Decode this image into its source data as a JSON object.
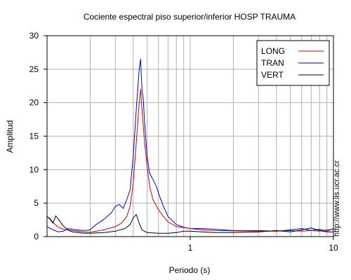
{
  "chart_data": {
    "type": "line",
    "title": "Cociente espectral piso superior/inferior  HOSP TRAUMA",
    "xlabel": "Periodo (s)",
    "ylabel": "Amplitud",
    "x_scale": "log",
    "xlim": [
      0.1,
      10
    ],
    "ylim": [
      0,
      30
    ],
    "x_ticks": [
      {
        "value": 1,
        "label": "1"
      },
      {
        "value": 10,
        "label": "10"
      }
    ],
    "y_ticks": [
      0,
      5,
      10,
      15,
      20,
      25,
      30
    ],
    "grid": true,
    "legend_position": "top-right",
    "series": [
      {
        "name": "LONG",
        "color": "#cc0000",
        "points": [
          [
            0.1,
            3.0
          ],
          [
            0.105,
            2.7
          ],
          [
            0.11,
            2.1
          ],
          [
            0.12,
            1.4
          ],
          [
            0.13,
            1.1
          ],
          [
            0.15,
            0.9
          ],
          [
            0.18,
            0.7
          ],
          [
            0.2,
            0.65
          ],
          [
            0.25,
            1.0
          ],
          [
            0.3,
            1.5
          ],
          [
            0.33,
            2.0
          ],
          [
            0.36,
            3.0
          ],
          [
            0.38,
            4.5
          ],
          [
            0.4,
            8.0
          ],
          [
            0.42,
            14.0
          ],
          [
            0.44,
            20.0
          ],
          [
            0.45,
            22.0
          ],
          [
            0.46,
            19.0
          ],
          [
            0.48,
            14.0
          ],
          [
            0.5,
            10.5
          ],
          [
            0.52,
            7.5
          ],
          [
            0.55,
            5.5
          ],
          [
            0.6,
            4.0
          ],
          [
            0.65,
            3.0
          ],
          [
            0.7,
            2.2
          ],
          [
            0.8,
            1.5
          ],
          [
            1.0,
            1.2
          ],
          [
            1.2,
            1.0
          ],
          [
            1.5,
            0.9
          ],
          [
            2.0,
            0.85
          ],
          [
            3.0,
            0.8
          ],
          [
            4.0,
            0.8
          ],
          [
            5.0,
            0.9
          ],
          [
            6.0,
            0.8
          ],
          [
            7.0,
            0.9
          ],
          [
            8.0,
            0.8
          ],
          [
            9.0,
            1.0
          ],
          [
            10.0,
            1.1
          ]
        ]
      },
      {
        "name": "TRAN",
        "color": "#0000cc",
        "points": [
          [
            0.1,
            1.5
          ],
          [
            0.11,
            1.0
          ],
          [
            0.12,
            0.7
          ],
          [
            0.13,
            0.8
          ],
          [
            0.14,
            1.2
          ],
          [
            0.16,
            1.0
          ],
          [
            0.18,
            0.9
          ],
          [
            0.2,
            1.0
          ],
          [
            0.22,
            1.8
          ],
          [
            0.25,
            2.6
          ],
          [
            0.28,
            3.5
          ],
          [
            0.3,
            4.5
          ],
          [
            0.32,
            4.8
          ],
          [
            0.34,
            4.2
          ],
          [
            0.36,
            5.5
          ],
          [
            0.38,
            7.0
          ],
          [
            0.4,
            12.0
          ],
          [
            0.42,
            19.0
          ],
          [
            0.44,
            25.0
          ],
          [
            0.45,
            26.5
          ],
          [
            0.46,
            22.0
          ],
          [
            0.47,
            20.5
          ],
          [
            0.48,
            17.0
          ],
          [
            0.5,
            12.0
          ],
          [
            0.52,
            9.5
          ],
          [
            0.55,
            8.5
          ],
          [
            0.58,
            7.5
          ],
          [
            0.6,
            6.5
          ],
          [
            0.65,
            4.5
          ],
          [
            0.7,
            3.0
          ],
          [
            0.8,
            1.8
          ],
          [
            0.9,
            1.4
          ],
          [
            1.0,
            1.2
          ],
          [
            1.2,
            1.2
          ],
          [
            1.5,
            1.1
          ],
          [
            2.0,
            0.9
          ],
          [
            3.0,
            0.9
          ],
          [
            4.0,
            0.8
          ],
          [
            5.0,
            1.0
          ],
          [
            6.0,
            1.2
          ],
          [
            7.0,
            0.9
          ],
          [
            8.0,
            1.1
          ],
          [
            9.0,
            0.8
          ],
          [
            10.0,
            1.2
          ]
        ]
      },
      {
        "name": "VERT",
        "color": "#000000",
        "points": [
          [
            0.1,
            3.0
          ],
          [
            0.105,
            2.6
          ],
          [
            0.11,
            2.0
          ],
          [
            0.115,
            3.1
          ],
          [
            0.12,
            2.6
          ],
          [
            0.13,
            1.6
          ],
          [
            0.14,
            1.0
          ],
          [
            0.15,
            0.7
          ],
          [
            0.18,
            0.5
          ],
          [
            0.2,
            0.5
          ],
          [
            0.25,
            0.6
          ],
          [
            0.3,
            0.8
          ],
          [
            0.35,
            1.2
          ],
          [
            0.38,
            1.8
          ],
          [
            0.4,
            2.8
          ],
          [
            0.42,
            3.3
          ],
          [
            0.44,
            2.0
          ],
          [
            0.46,
            1.0
          ],
          [
            0.5,
            0.6
          ],
          [
            0.6,
            0.5
          ],
          [
            0.7,
            0.5
          ],
          [
            0.8,
            0.6
          ],
          [
            0.9,
            0.8
          ],
          [
            1.0,
            0.8
          ],
          [
            1.2,
            0.7
          ],
          [
            1.5,
            0.6
          ],
          [
            2.0,
            0.6
          ],
          [
            3.0,
            0.7
          ],
          [
            4.0,
            0.9
          ],
          [
            5.0,
            0.7
          ],
          [
            6.0,
            1.0
          ],
          [
            7.0,
            1.3
          ],
          [
            8.0,
            0.9
          ],
          [
            9.0,
            0.7
          ],
          [
            10.0,
            0.7
          ]
        ]
      }
    ]
  },
  "url_text": "http://www.lis.ucr.ac.cr"
}
